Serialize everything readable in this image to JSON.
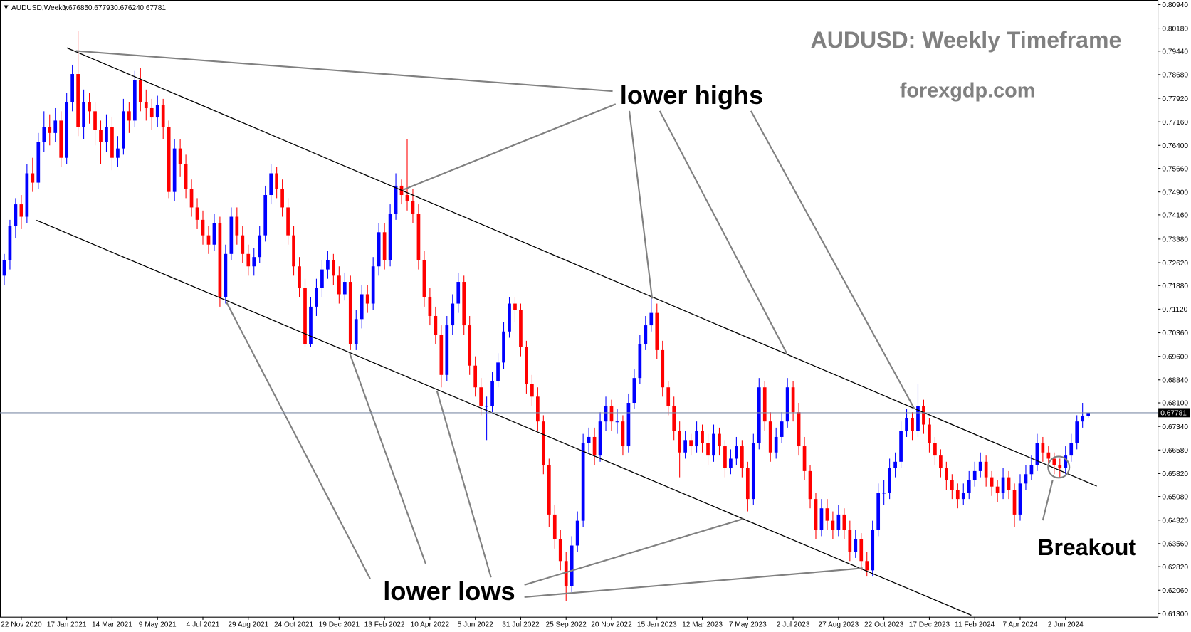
{
  "chart_data": {
    "type": "candlestick",
    "symbol": "AUDUSD,Weekly",
    "title": "AUDUSD: Weekly Timeframe",
    "subtitle": "forexgdp.com",
    "annotations": {
      "highs": "lower highs",
      "lows": "lower lows",
      "breakout": "Breakout"
    },
    "up_color": "#0000ff",
    "down_color": "#ff0000",
    "ylim": [
      0.613,
      0.8094
    ],
    "yticks": [
      {
        "value": 0.8094,
        "label": "0.80940"
      },
      {
        "value": 0.8018,
        "label": "0.80180"
      },
      {
        "value": 0.7944,
        "label": "0.79440"
      },
      {
        "value": 0.7868,
        "label": "0.78680"
      },
      {
        "value": 0.7792,
        "label": "0.77920"
      },
      {
        "value": 0.7716,
        "label": "0.77160"
      },
      {
        "value": 0.764,
        "label": "0.76400"
      },
      {
        "value": 0.7566,
        "label": "0.75660"
      },
      {
        "value": 0.749,
        "label": "0.74900"
      },
      {
        "value": 0.7416,
        "label": "0.74160"
      },
      {
        "value": 0.7338,
        "label": "0.73380"
      },
      {
        "value": 0.7262,
        "label": "0.72620"
      },
      {
        "value": 0.7188,
        "label": "0.71880"
      },
      {
        "value": 0.7112,
        "label": "0.71120"
      },
      {
        "value": 0.7036,
        "label": "0.70360"
      },
      {
        "value": 0.696,
        "label": "0.69600"
      },
      {
        "value": 0.6884,
        "label": "0.68840"
      },
      {
        "value": 0.681,
        "label": "0.68100"
      },
      {
        "value": 0.6734,
        "label": "0.67340"
      },
      {
        "value": 0.6658,
        "label": "0.66580"
      },
      {
        "value": 0.6582,
        "label": "0.65820"
      },
      {
        "value": 0.6508,
        "label": "0.65080"
      },
      {
        "value": 0.6432,
        "label": "0.64320"
      },
      {
        "value": 0.6356,
        "label": "0.63560"
      },
      {
        "value": 0.6282,
        "label": "0.62820"
      },
      {
        "value": 0.6206,
        "label": "0.62060"
      },
      {
        "value": 0.613,
        "label": "0.61300"
      }
    ],
    "categories": [
      null,
      null,
      null,
      "22 Nov 2020",
      null,
      null,
      null,
      null,
      null,
      null,
      null,
      "17 Jan 2021",
      null,
      null,
      null,
      null,
      null,
      null,
      null,
      "14 Mar 2021",
      null,
      null,
      null,
      null,
      null,
      null,
      null,
      "9 May 2021",
      null,
      null,
      null,
      null,
      null,
      null,
      null,
      "4 Jul 2021",
      null,
      null,
      null,
      null,
      null,
      null,
      null,
      "29 Aug 2021",
      null,
      null,
      null,
      null,
      null,
      null,
      null,
      "24 Oct 2021",
      null,
      null,
      null,
      null,
      null,
      null,
      null,
      "19 Dec 2021",
      null,
      null,
      null,
      null,
      null,
      null,
      null,
      "13 Feb 2022",
      null,
      null,
      null,
      null,
      null,
      null,
      null,
      "10 Apr 2022",
      null,
      null,
      null,
      null,
      null,
      null,
      null,
      "5 Jun 2022",
      null,
      null,
      null,
      null,
      null,
      null,
      null,
      "31 Jul 2022",
      null,
      null,
      null,
      null,
      null,
      null,
      null,
      "25 Sep 2022",
      null,
      null,
      null,
      null,
      null,
      null,
      null,
      "20 Nov 2022",
      null,
      null,
      null,
      null,
      null,
      null,
      null,
      "15 Jan 2023",
      null,
      null,
      null,
      null,
      null,
      null,
      null,
      "12 Mar 2023",
      null,
      null,
      null,
      null,
      null,
      null,
      null,
      "7 May 2023",
      null,
      null,
      null,
      null,
      null,
      null,
      null,
      "2 Jul 2023",
      null,
      null,
      null,
      null,
      null,
      null,
      null,
      "27 Aug 2023",
      null,
      null,
      null,
      null,
      null,
      null,
      null,
      "22 Oct 2023",
      null,
      null,
      null,
      null,
      null,
      null,
      null,
      "17 Dec 2023",
      null,
      null,
      null,
      null,
      null,
      null,
      null,
      "11 Feb 2024",
      null,
      null,
      null,
      null,
      null,
      null,
      null,
      "7 Apr 2024",
      null,
      null,
      null,
      null,
      null,
      null,
      null,
      "2 Jun 2024",
      null,
      null,
      null,
      null
    ],
    "candles": [
      [
        0.722,
        0.729,
        0.719,
        0.727
      ],
      [
        0.727,
        0.74,
        0.724,
        0.738
      ],
      [
        0.738,
        0.747,
        0.734,
        0.745
      ],
      [
        0.745,
        0.748,
        0.737,
        0.741
      ],
      [
        0.741,
        0.758,
        0.739,
        0.755
      ],
      [
        0.755,
        0.76,
        0.749,
        0.752
      ],
      [
        0.752,
        0.768,
        0.75,
        0.765
      ],
      [
        0.765,
        0.775,
        0.762,
        0.77
      ],
      [
        0.77,
        0.774,
        0.764,
        0.768
      ],
      [
        0.768,
        0.776,
        0.765,
        0.772
      ],
      [
        0.772,
        0.775,
        0.757,
        0.76
      ],
      [
        0.76,
        0.781,
        0.758,
        0.778
      ],
      [
        0.778,
        0.79,
        0.775,
        0.787
      ],
      [
        0.787,
        0.801,
        0.767,
        0.77
      ],
      [
        0.77,
        0.782,
        0.766,
        0.778
      ],
      [
        0.778,
        0.781,
        0.771,
        0.775
      ],
      [
        0.775,
        0.778,
        0.764,
        0.769
      ],
      [
        0.769,
        0.772,
        0.758,
        0.765
      ],
      [
        0.765,
        0.774,
        0.762,
        0.77
      ],
      [
        0.77,
        0.773,
        0.756,
        0.76
      ],
      [
        0.76,
        0.767,
        0.757,
        0.763
      ],
      [
        0.763,
        0.779,
        0.761,
        0.775
      ],
      [
        0.775,
        0.778,
        0.768,
        0.772
      ],
      [
        0.772,
        0.788,
        0.77,
        0.785
      ],
      [
        0.785,
        0.789,
        0.775,
        0.778
      ],
      [
        0.778,
        0.782,
        0.772,
        0.776
      ],
      [
        0.776,
        0.779,
        0.769,
        0.773
      ],
      [
        0.773,
        0.78,
        0.77,
        0.777
      ],
      [
        0.777,
        0.779,
        0.766,
        0.77
      ],
      [
        0.77,
        0.772,
        0.747,
        0.749
      ],
      [
        0.749,
        0.766,
        0.746,
        0.763
      ],
      [
        0.763,
        0.766,
        0.754,
        0.758
      ],
      [
        0.758,
        0.761,
        0.747,
        0.75
      ],
      [
        0.75,
        0.753,
        0.741,
        0.744
      ],
      [
        0.744,
        0.747,
        0.737,
        0.74
      ],
      [
        0.74,
        0.743,
        0.732,
        0.735
      ],
      [
        0.735,
        0.738,
        0.729,
        0.732
      ],
      [
        0.732,
        0.742,
        0.73,
        0.739
      ],
      [
        0.739,
        0.741,
        0.712,
        0.715
      ],
      [
        0.715,
        0.732,
        0.713,
        0.729
      ],
      [
        0.729,
        0.744,
        0.727,
        0.741
      ],
      [
        0.741,
        0.744,
        0.732,
        0.735
      ],
      [
        0.735,
        0.738,
        0.726,
        0.729
      ],
      [
        0.729,
        0.732,
        0.722,
        0.725
      ],
      [
        0.725,
        0.731,
        0.722,
        0.728
      ],
      [
        0.728,
        0.738,
        0.726,
        0.735
      ],
      [
        0.735,
        0.751,
        0.733,
        0.748
      ],
      [
        0.748,
        0.758,
        0.745,
        0.755
      ],
      [
        0.755,
        0.757,
        0.747,
        0.75
      ],
      [
        0.75,
        0.753,
        0.741,
        0.744
      ],
      [
        0.744,
        0.747,
        0.732,
        0.735
      ],
      [
        0.735,
        0.738,
        0.722,
        0.725
      ],
      [
        0.725,
        0.728,
        0.715,
        0.718
      ],
      [
        0.718,
        0.721,
        0.699,
        0.7
      ],
      [
        0.7,
        0.715,
        0.699,
        0.712
      ],
      [
        0.712,
        0.721,
        0.709,
        0.718
      ],
      [
        0.718,
        0.727,
        0.715,
        0.724
      ],
      [
        0.724,
        0.73,
        0.721,
        0.727
      ],
      [
        0.727,
        0.729,
        0.719,
        0.722
      ],
      [
        0.722,
        0.725,
        0.713,
        0.716
      ],
      [
        0.716,
        0.723,
        0.714,
        0.72
      ],
      [
        0.72,
        0.722,
        0.698,
        0.7
      ],
      [
        0.7,
        0.711,
        0.698,
        0.708
      ],
      [
        0.708,
        0.719,
        0.705,
        0.716
      ],
      [
        0.716,
        0.719,
        0.71,
        0.713
      ],
      [
        0.713,
        0.728,
        0.711,
        0.725
      ],
      [
        0.725,
        0.739,
        0.722,
        0.736
      ],
      [
        0.736,
        0.739,
        0.724,
        0.727
      ],
      [
        0.727,
        0.745,
        0.725,
        0.742
      ],
      [
        0.742,
        0.755,
        0.74,
        0.751
      ],
      [
        0.751,
        0.753,
        0.745,
        0.748
      ],
      [
        0.748,
        0.766,
        0.743,
        0.746
      ],
      [
        0.746,
        0.75,
        0.739,
        0.742
      ],
      [
        0.742,
        0.745,
        0.724,
        0.727
      ],
      [
        0.727,
        0.73,
        0.712,
        0.715
      ],
      [
        0.715,
        0.718,
        0.706,
        0.709
      ],
      [
        0.709,
        0.712,
        0.7,
        0.703
      ],
      [
        0.703,
        0.706,
        0.686,
        0.69
      ],
      [
        0.69,
        0.709,
        0.688,
        0.706
      ],
      [
        0.706,
        0.716,
        0.703,
        0.713
      ],
      [
        0.713,
        0.723,
        0.71,
        0.72
      ],
      [
        0.72,
        0.722,
        0.703,
        0.706
      ],
      [
        0.706,
        0.709,
        0.69,
        0.693
      ],
      [
        0.693,
        0.696,
        0.683,
        0.686
      ],
      [
        0.686,
        0.689,
        0.677,
        0.68
      ],
      [
        0.68,
        0.683,
        0.669,
        0.68
      ],
      [
        0.68,
        0.691,
        0.678,
        0.688
      ],
      [
        0.688,
        0.697,
        0.686,
        0.694
      ],
      [
        0.694,
        0.707,
        0.692,
        0.704
      ],
      [
        0.704,
        0.715,
        0.702,
        0.713
      ],
      [
        0.713,
        0.715,
        0.707,
        0.711
      ],
      [
        0.711,
        0.713,
        0.696,
        0.699
      ],
      [
        0.699,
        0.701,
        0.684,
        0.687
      ],
      [
        0.687,
        0.69,
        0.68,
        0.683
      ],
      [
        0.683,
        0.686,
        0.672,
        0.675
      ],
      [
        0.675,
        0.677,
        0.658,
        0.661
      ],
      [
        0.661,
        0.663,
        0.641,
        0.645
      ],
      [
        0.645,
        0.648,
        0.634,
        0.637
      ],
      [
        0.637,
        0.64,
        0.627,
        0.63
      ],
      [
        0.63,
        0.633,
        0.617,
        0.622
      ],
      [
        0.622,
        0.638,
        0.62,
        0.635
      ],
      [
        0.635,
        0.646,
        0.633,
        0.643
      ],
      [
        0.643,
        0.671,
        0.641,
        0.668
      ],
      [
        0.668,
        0.673,
        0.665,
        0.67
      ],
      [
        0.67,
        0.673,
        0.661,
        0.664
      ],
      [
        0.664,
        0.678,
        0.662,
        0.675
      ],
      [
        0.675,
        0.683,
        0.672,
        0.68
      ],
      [
        0.68,
        0.682,
        0.672,
        0.675
      ],
      [
        0.675,
        0.679,
        0.671,
        0.675
      ],
      [
        0.675,
        0.677,
        0.664,
        0.667
      ],
      [
        0.667,
        0.684,
        0.665,
        0.681
      ],
      [
        0.681,
        0.692,
        0.679,
        0.689
      ],
      [
        0.689,
        0.703,
        0.687,
        0.7
      ],
      [
        0.7,
        0.709,
        0.698,
        0.706
      ],
      [
        0.706,
        0.715,
        0.704,
        0.71
      ],
      [
        0.71,
        0.713,
        0.695,
        0.698
      ],
      [
        0.698,
        0.701,
        0.683,
        0.686
      ],
      [
        0.686,
        0.688,
        0.677,
        0.68
      ],
      [
        0.68,
        0.683,
        0.669,
        0.672
      ],
      [
        0.672,
        0.675,
        0.657,
        0.665
      ],
      [
        0.665,
        0.672,
        0.663,
        0.669
      ],
      [
        0.669,
        0.671,
        0.664,
        0.667
      ],
      [
        0.667,
        0.675,
        0.665,
        0.672
      ],
      [
        0.672,
        0.674,
        0.665,
        0.668
      ],
      [
        0.668,
        0.671,
        0.661,
        0.664
      ],
      [
        0.664,
        0.674,
        0.662,
        0.671
      ],
      [
        0.671,
        0.673,
        0.664,
        0.667
      ],
      [
        0.667,
        0.669,
        0.657,
        0.66
      ],
      [
        0.66,
        0.666,
        0.658,
        0.663
      ],
      [
        0.663,
        0.67,
        0.661,
        0.667
      ],
      [
        0.667,
        0.669,
        0.657,
        0.66
      ],
      [
        0.66,
        0.662,
        0.646,
        0.65
      ],
      [
        0.65,
        0.671,
        0.648,
        0.668
      ],
      [
        0.668,
        0.689,
        0.666,
        0.686
      ],
      [
        0.686,
        0.688,
        0.672,
        0.675
      ],
      [
        0.675,
        0.678,
        0.662,
        0.665
      ],
      [
        0.665,
        0.673,
        0.663,
        0.67
      ],
      [
        0.67,
        0.678,
        0.668,
        0.675
      ],
      [
        0.675,
        0.689,
        0.673,
        0.686
      ],
      [
        0.686,
        0.688,
        0.675,
        0.678
      ],
      [
        0.678,
        0.681,
        0.664,
        0.667
      ],
      [
        0.667,
        0.67,
        0.656,
        0.659
      ],
      [
        0.659,
        0.661,
        0.647,
        0.65
      ],
      [
        0.65,
        0.652,
        0.637,
        0.64
      ],
      [
        0.64,
        0.65,
        0.638,
        0.647
      ],
      [
        0.647,
        0.65,
        0.64,
        0.643
      ],
      [
        0.643,
        0.646,
        0.637,
        0.64
      ],
      [
        0.64,
        0.648,
        0.638,
        0.645
      ],
      [
        0.645,
        0.647,
        0.637,
        0.64
      ],
      [
        0.64,
        0.643,
        0.63,
        0.633
      ],
      [
        0.633,
        0.64,
        0.631,
        0.637
      ],
      [
        0.637,
        0.639,
        0.627,
        0.63
      ],
      [
        0.63,
        0.633,
        0.625,
        0.627
      ],
      [
        0.627,
        0.643,
        0.625,
        0.64
      ],
      [
        0.64,
        0.655,
        0.638,
        0.652
      ],
      [
        0.652,
        0.656,
        0.648,
        0.652
      ],
      [
        0.652,
        0.663,
        0.65,
        0.66
      ],
      [
        0.66,
        0.665,
        0.657,
        0.662
      ],
      [
        0.662,
        0.675,
        0.66,
        0.672
      ],
      [
        0.672,
        0.679,
        0.67,
        0.676
      ],
      [
        0.676,
        0.678,
        0.669,
        0.672
      ],
      [
        0.672,
        0.687,
        0.67,
        0.68
      ],
      [
        0.68,
        0.682,
        0.671,
        0.674
      ],
      [
        0.674,
        0.676,
        0.665,
        0.668
      ],
      [
        0.668,
        0.67,
        0.661,
        0.664
      ],
      [
        0.664,
        0.666,
        0.657,
        0.66
      ],
      [
        0.66,
        0.662,
        0.653,
        0.656
      ],
      [
        0.656,
        0.658,
        0.65,
        0.653
      ],
      [
        0.653,
        0.655,
        0.647,
        0.65
      ],
      [
        0.65,
        0.655,
        0.648,
        0.652
      ],
      [
        0.652,
        0.659,
        0.65,
        0.656
      ],
      [
        0.656,
        0.662,
        0.654,
        0.659
      ],
      [
        0.659,
        0.665,
        0.657,
        0.662
      ],
      [
        0.662,
        0.664,
        0.654,
        0.657
      ],
      [
        0.657,
        0.659,
        0.651,
        0.654
      ],
      [
        0.654,
        0.656,
        0.649,
        0.652
      ],
      [
        0.652,
        0.66,
        0.65,
        0.657
      ],
      [
        0.657,
        0.659,
        0.65,
        0.653
      ],
      [
        0.653,
        0.655,
        0.641,
        0.645
      ],
      [
        0.645,
        0.658,
        0.643,
        0.655
      ],
      [
        0.655,
        0.661,
        0.653,
        0.658
      ],
      [
        0.658,
        0.664,
        0.656,
        0.661
      ],
      [
        0.661,
        0.671,
        0.659,
        0.668
      ],
      [
        0.668,
        0.67,
        0.662,
        0.665
      ],
      [
        0.665,
        0.667,
        0.66,
        0.663
      ],
      [
        0.663,
        0.665,
        0.658,
        0.661
      ],
      [
        0.661,
        0.663,
        0.657,
        0.66
      ],
      [
        0.66,
        0.667,
        0.658,
        0.664
      ],
      [
        0.664,
        0.671,
        0.662,
        0.668
      ],
      [
        0.668,
        0.677,
        0.666,
        0.675
      ],
      [
        0.675,
        0.681,
        0.673,
        0.67685
      ],
      [
        0.67685,
        0.67793,
        0.67624,
        0.67781
      ]
    ]
  }
}
